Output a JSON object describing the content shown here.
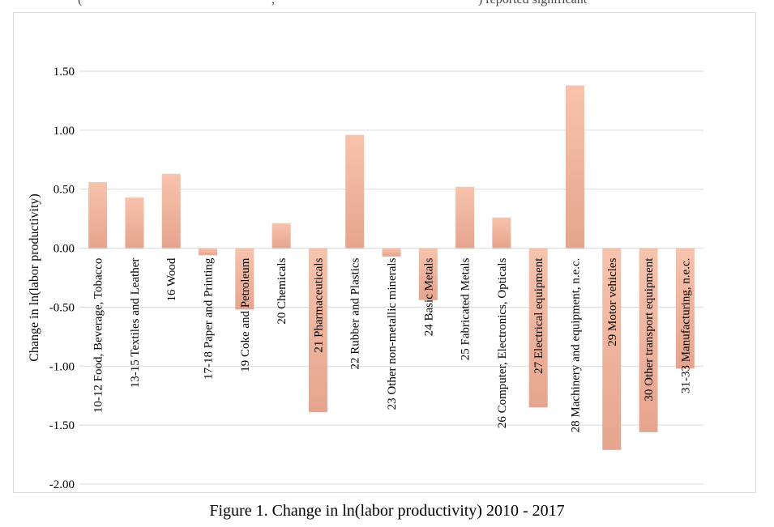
{
  "header": {
    "fragment_left": "(",
    "fragment_mid": ", ",
    "fragment_right": ") reported significant"
  },
  "caption": "Figure 1. Change in ln(labor productivity) 2010 - 2017",
  "colors": {
    "bar_light": "#f7c3ad",
    "bar_dark": "#e6a48e",
    "grid": "#d9d9d9"
  },
  "chart_data": {
    "type": "bar",
    "ylabel": "Change in ln(labor productivity)",
    "ylim": [
      -2.0,
      1.5
    ],
    "yticks": [
      "1.50",
      "1.00",
      "0.50",
      "0.00",
      "-0.50",
      "-1.00",
      "-1.50",
      "-2.00"
    ],
    "ytick_values": [
      1.5,
      1.0,
      0.5,
      0.0,
      -0.5,
      -1.0,
      -1.5,
      -2.0
    ],
    "grid": true,
    "legend": "none",
    "categories": [
      "10-12 Food, Beverage, Tobacco",
      "13-15 Textiles and Leather",
      "16 Wood",
      "17-18 Paper and Printing",
      "19 Coke and Petroleum",
      "20 Chemicals",
      "21 Pharmaceuticals",
      "22 Rubber and Plastics",
      "23 Other non-metallic minerals",
      "24 Basic Metals",
      "25 Fabricated Metals",
      "26 Computer, Electronics, Opticals",
      "27 Electrical equipment",
      "28 Machinery and equipment, n.e.c.",
      "29 Motor vehicles",
      "30 Other transport equipment",
      "31-33 Manufacturing, n.e.c."
    ],
    "values": [
      0.56,
      0.43,
      0.63,
      -0.06,
      -0.52,
      0.21,
      -1.39,
      0.96,
      -0.07,
      -0.44,
      0.52,
      0.26,
      -1.35,
      1.38,
      -1.71,
      -1.56,
      -1.02
    ]
  }
}
